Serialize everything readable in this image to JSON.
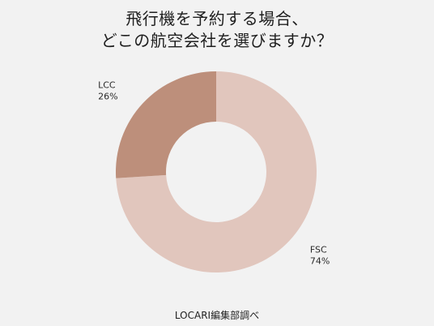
{
  "chart_data": {
    "type": "pie",
    "title_lines": [
      "飛行機を予約する場合、",
      "どこの航空会社を選びますか？"
    ],
    "slices": [
      {
        "name": "FSC",
        "value": 74,
        "percent_label": "74%",
        "color": "#e1c6bd"
      },
      {
        "name": "LCC",
        "value": 26,
        "percent_label": "26%",
        "color": "#bd8f7b"
      }
    ],
    "donut": true,
    "legend": "none",
    "labels_outside": true
  },
  "source_note": "LOCARI編集部調べ"
}
